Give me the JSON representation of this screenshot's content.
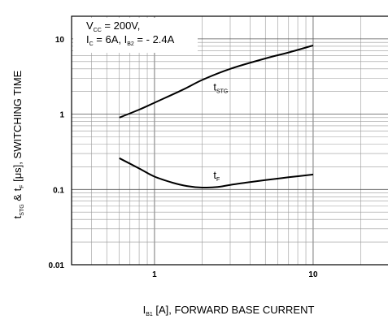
{
  "chart_data": {
    "type": "line",
    "scale": {
      "x": "log",
      "y": "log"
    },
    "xlim": [
      0.3,
      30
    ],
    "ylim": [
      0.01,
      20
    ],
    "grid": true,
    "x_ticks": [
      {
        "value": 1,
        "label": "1"
      },
      {
        "value": 10,
        "label": "10"
      }
    ],
    "y_ticks": [
      {
        "value": 0.01,
        "label": "0.01"
      },
      {
        "value": 0.1,
        "label": "0.1"
      },
      {
        "value": 1,
        "label": "1"
      },
      {
        "value": 10,
        "label": "10"
      }
    ],
    "xlabel": {
      "pre": "I",
      "sub": "B1",
      "post": " [A], FORWARD BASE CURRENT"
    },
    "ylabel": {
      "p1": "t",
      "s1": "STG",
      "p2": " & t",
      "s2": "F",
      "p3": " [μs], SWITCHING TIME"
    },
    "conditions": [
      {
        "parts": [
          {
            "t": "V"
          },
          {
            "t": "CC",
            "sub": true
          },
          {
            "t": " = 200V,"
          }
        ]
      },
      {
        "parts": [
          {
            "t": "I"
          },
          {
            "t": "C",
            "sub": true
          },
          {
            "t": " = 6A, I"
          },
          {
            "t": "B2",
            "sub": true
          },
          {
            "t": " = - 2.4A"
          }
        ]
      }
    ],
    "series": [
      {
        "name": {
          "main": "t",
          "sub": "STG"
        },
        "label_at": [
          2.35,
          2.05
        ],
        "x": [
          0.6,
          0.8,
          1.0,
          1.5,
          2.0,
          3.0,
          5.0,
          7.0,
          10.0
        ],
        "y": [
          0.9,
          1.15,
          1.42,
          2.1,
          2.85,
          4.0,
          5.5,
          6.6,
          8.2
        ]
      },
      {
        "name": {
          "main": "t",
          "sub": "F"
        },
        "label_at": [
          2.35,
          0.14
        ],
        "x": [
          0.6,
          0.8,
          1.0,
          1.3,
          1.6,
          2.0,
          2.5,
          3.0,
          4.0,
          5.0,
          7.0,
          10.0
        ],
        "y": [
          0.26,
          0.19,
          0.148,
          0.123,
          0.111,
          0.106,
          0.108,
          0.115,
          0.125,
          0.133,
          0.145,
          0.158
        ]
      }
    ]
  }
}
